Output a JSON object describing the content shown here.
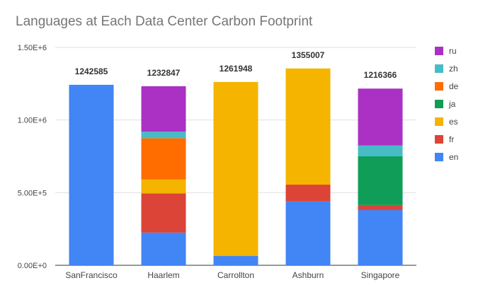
{
  "chart_data": {
    "type": "bar",
    "stacked": true,
    "title": "Languages at Each Data Center Carbon Footprint",
    "categories": [
      "SanFrancisco",
      "Haarlem",
      "Carrollton",
      "Ashburn",
      "Singapore"
    ],
    "totals": [
      1242585,
      1232847,
      1261948,
      1355007,
      1216366
    ],
    "yticks": [
      "0.00E+0",
      "5.00E+5",
      "1.00E+6",
      "1.50E+6"
    ],
    "ylim": [
      0,
      1500000
    ],
    "grid": true,
    "legend_position": "right",
    "series": [
      {
        "name": "en",
        "color": "#4285f4",
        "values": [
          1242585,
          225000,
          65000,
          440000,
          380000
        ]
      },
      {
        "name": "fr",
        "color": "#db4437",
        "values": [
          0,
          270000,
          0,
          115000,
          35000
        ]
      },
      {
        "name": "es",
        "color": "#f4b400",
        "values": [
          0,
          95000,
          1196948,
          800007,
          0
        ]
      },
      {
        "name": "ja",
        "color": "#0f9d58",
        "values": [
          0,
          0,
          0,
          0,
          335000
        ]
      },
      {
        "name": "de",
        "color": "#ff6d00",
        "values": [
          0,
          285000,
          0,
          0,
          0
        ]
      },
      {
        "name": "zh",
        "color": "#46bdc6",
        "values": [
          0,
          45000,
          0,
          0,
          75000
        ]
      },
      {
        "name": "ru",
        "color": "#ab30c4",
        "values": [
          0,
          312847,
          0,
          0,
          391366
        ]
      }
    ],
    "legend_order": [
      "ru",
      "zh",
      "de",
      "ja",
      "es",
      "fr",
      "en"
    ]
  }
}
